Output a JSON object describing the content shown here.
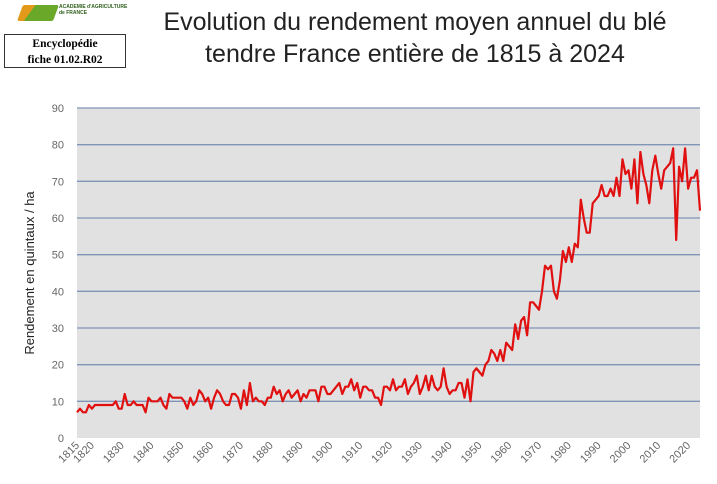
{
  "header": {
    "logo_text": "ACADEMIE d'AGRICULTURE de FRANCE",
    "fiche_line1": "Encyclopédie",
    "fiche_line2": "fiche 01.02.R02"
  },
  "chart_data": {
    "type": "line",
    "title": "Evolution du rendement moyen annuel du blé tendre France entière de 1815 à 2024",
    "xlabel": "",
    "ylabel": "Rendement en quintaux / ha",
    "xlim": [
      1815,
      2024
    ],
    "ylim": [
      0,
      90
    ],
    "yticks": [
      0,
      10,
      20,
      30,
      40,
      50,
      60,
      70,
      80,
      90
    ],
    "xticks": [
      1815,
      1820,
      1830,
      1840,
      1850,
      1860,
      1870,
      1880,
      1890,
      1900,
      1910,
      1920,
      1930,
      1940,
      1950,
      1960,
      1970,
      1980,
      1990,
      2000,
      2010,
      2020
    ],
    "grid": true,
    "colors": {
      "line": "#e01010",
      "plot_bg": "#e1e1e1",
      "grid": "#7f95b8"
    },
    "series": [
      {
        "name": "Rendement",
        "x_start": 1815,
        "values": [
          7,
          8,
          7,
          7,
          9,
          8,
          9,
          9,
          9,
          9,
          9,
          9,
          9,
          10,
          8,
          8,
          12,
          9,
          9,
          10,
          9,
          9,
          9,
          7,
          11,
          10,
          10,
          10,
          11,
          9,
          8,
          12,
          11,
          11,
          11,
          11,
          10,
          8,
          11,
          9,
          10,
          13,
          12,
          10,
          11,
          8,
          11,
          13,
          12,
          10,
          9,
          9,
          12,
          12,
          11,
          8,
          13,
          9,
          15,
          10,
          11,
          10,
          10,
          9,
          11,
          11,
          14,
          12,
          13,
          10,
          12,
          13,
          11,
          12,
          13,
          10,
          12,
          11,
          13,
          13,
          13,
          10,
          14,
          14,
          12,
          12,
          13,
          14,
          15,
          12,
          14,
          14,
          16,
          13,
          15,
          11,
          14,
          14,
          13,
          13,
          11,
          11,
          9,
          14,
          14,
          13,
          16,
          13,
          14,
          14,
          16,
          12,
          14,
          15,
          17,
          12,
          14,
          17,
          13,
          17,
          14,
          13,
          14,
          19,
          14,
          12,
          13,
          13,
          15,
          15,
          11,
          16,
          10,
          18,
          19,
          18,
          17,
          20,
          21,
          24,
          23,
          21,
          24,
          21,
          26,
          25,
          24,
          31,
          27,
          32,
          33,
          28,
          37,
          37,
          36,
          35,
          40,
          47,
          46,
          47,
          40,
          38,
          43,
          51,
          48,
          52,
          48,
          53,
          52,
          65,
          60,
          56,
          56,
          64,
          65,
          66,
          69,
          66,
          66,
          68,
          66,
          71,
          66,
          76,
          72,
          73,
          68,
          76,
          64,
          78,
          72,
          69,
          64,
          73,
          77,
          72,
          68,
          73,
          74,
          75,
          79,
          54,
          74,
          70,
          79,
          68,
          71,
          71,
          73,
          62
        ]
      }
    ]
  }
}
